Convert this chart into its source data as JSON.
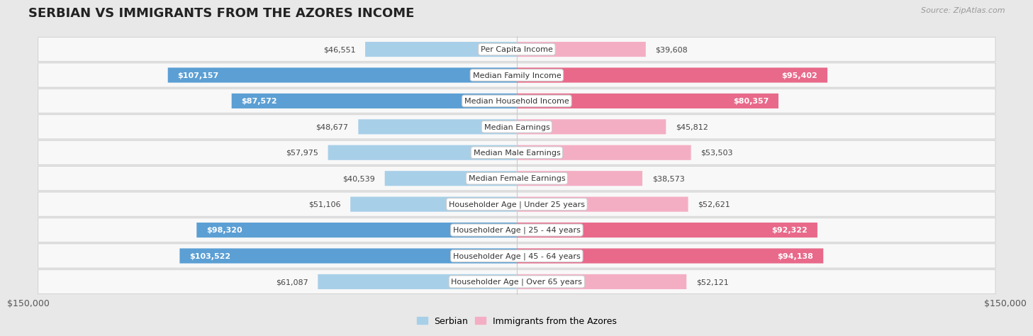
{
  "title": "SERBIAN VS IMMIGRANTS FROM THE AZORES INCOME",
  "source": "Source: ZipAtlas.com",
  "categories": [
    "Per Capita Income",
    "Median Family Income",
    "Median Household Income",
    "Median Earnings",
    "Median Male Earnings",
    "Median Female Earnings",
    "Householder Age | Under 25 years",
    "Householder Age | 25 - 44 years",
    "Householder Age | 45 - 64 years",
    "Householder Age | Over 65 years"
  ],
  "serbian_values": [
    46551,
    107157,
    87572,
    48677,
    57975,
    40539,
    51106,
    98320,
    103522,
    61087
  ],
  "azores_values": [
    39608,
    95402,
    80357,
    45812,
    53503,
    38573,
    52621,
    92322,
    94138,
    52121
  ],
  "serbian_color_light": "#a8cfe8",
  "serbian_color_dark": "#5b9fd4",
  "azores_color_light": "#f4aec4",
  "azores_color_dark": "#e8698a",
  "serbian_label": "Serbian",
  "azores_label": "Immigrants from the Azores",
  "max_value": 150000,
  "outer_bg_color": "#e8e8e8",
  "row_bg_color": "#f8f8f8",
  "title_fontsize": 13,
  "value_fontsize": 8,
  "cat_fontsize": 8,
  "axis_label": "$150,000",
  "serbian_inside_threshold": 75000,
  "azores_inside_threshold": 75000
}
